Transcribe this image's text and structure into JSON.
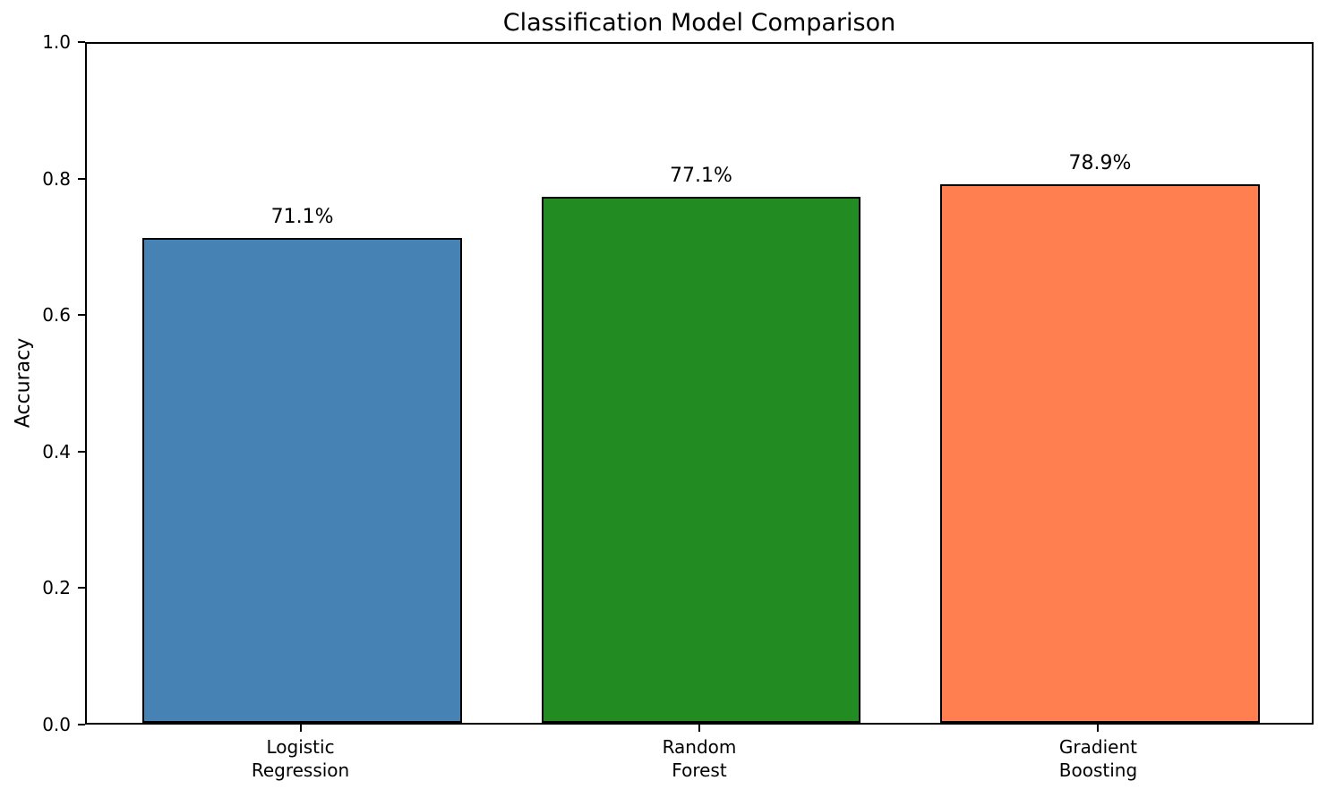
{
  "chart_data": {
    "type": "bar",
    "title": "Classification Model Comparison",
    "categories": [
      "Logistic\nRegression",
      "Random\nForest",
      "Gradient\nBoosting"
    ],
    "values": [
      0.711,
      0.771,
      0.789
    ],
    "bar_labels": [
      "71.1%",
      "77.1%",
      "78.9%"
    ],
    "bar_colors": [
      "#4682b4",
      "#228b22",
      "#ff7f50"
    ],
    "bar_edge_color": "#000000",
    "x": [
      0,
      1,
      2
    ],
    "bar_width": 0.8,
    "xlim": [
      -0.54,
      2.54
    ],
    "xlabel": "",
    "ylabel": "Accuracy",
    "ylim": [
      0.0,
      1.0
    ],
    "yticks": [
      0.0,
      0.2,
      0.4,
      0.6,
      0.8,
      1.0
    ],
    "ytick_labels": [
      "0.0",
      "0.2",
      "0.4",
      "0.6",
      "0.8",
      "1.0"
    ],
    "grid": false,
    "legend": "none",
    "background_color": "#ffffff",
    "text_color": "#000000"
  }
}
